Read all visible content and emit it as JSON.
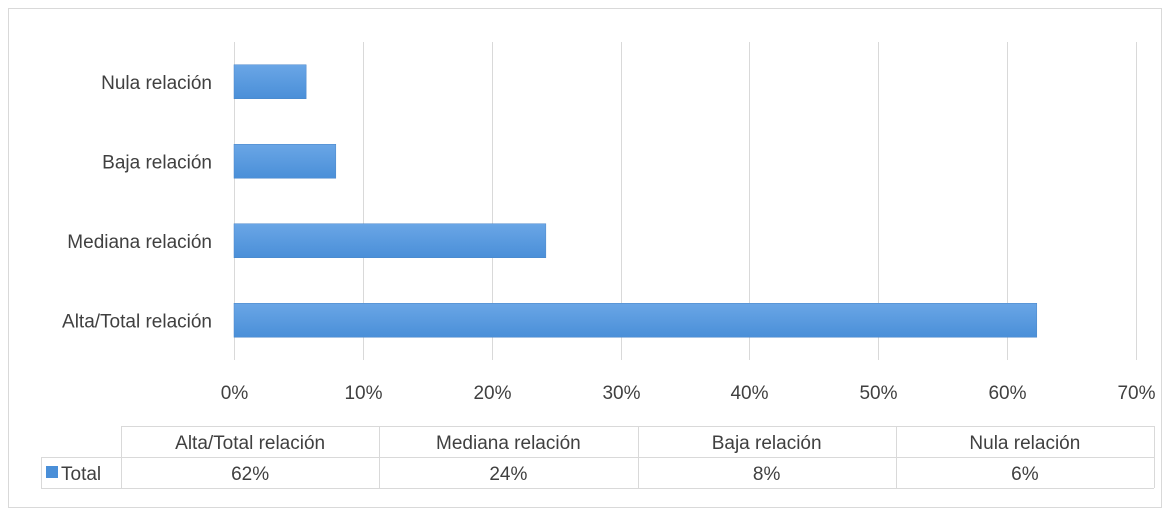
{
  "chart_data": {
    "type": "bar",
    "orientation": "horizontal",
    "categories": [
      "Alta/Total relación",
      "Mediana relación",
      "Baja relación",
      "Nula relación"
    ],
    "series": [
      {
        "name": "Total",
        "values": [
          62.3,
          24.2,
          7.9,
          5.6
        ],
        "color": "#4a8fd8"
      }
    ],
    "data_labels": [
      "62%",
      "24%",
      "8%",
      "6%"
    ],
    "xlim": [
      0,
      70
    ],
    "x_ticks": [
      0,
      10,
      20,
      30,
      40,
      50,
      60,
      70
    ],
    "x_tick_labels": [
      "0%",
      "10%",
      "20%",
      "30%",
      "40%",
      "50%",
      "60%",
      "70%"
    ],
    "grid": true,
    "legend": "data-table-bottom",
    "title": "",
    "xlabel": "",
    "ylabel": ""
  }
}
